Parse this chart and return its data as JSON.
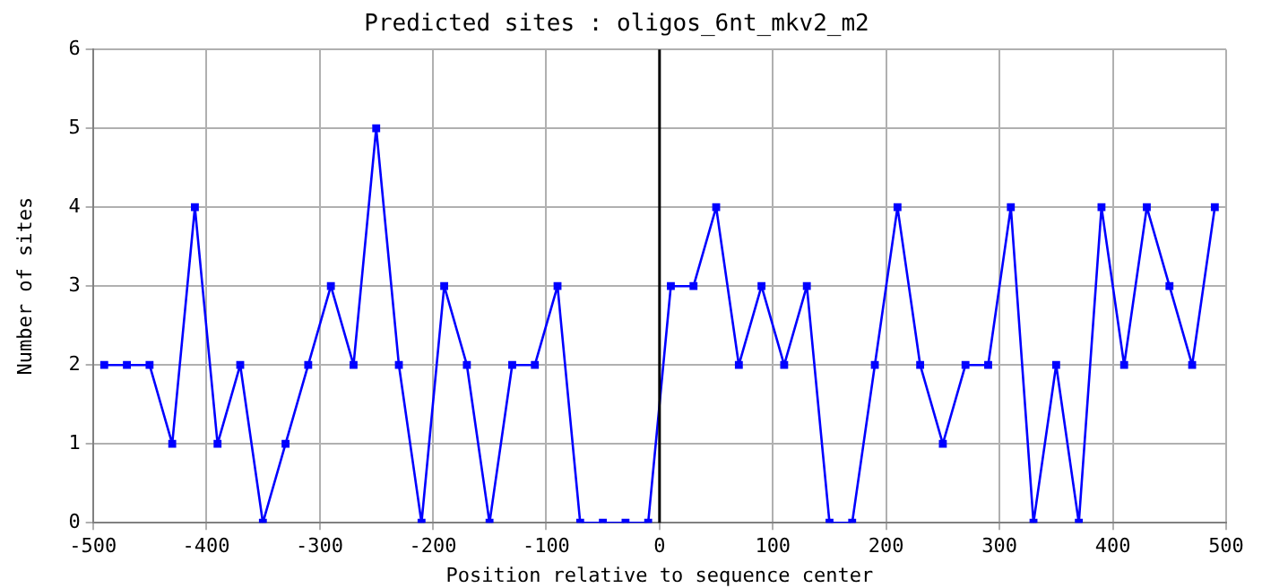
{
  "chart_data": {
    "type": "line",
    "title": "Predicted sites : oligos_6nt_mkv2_m2",
    "xlabel": "Position relative to sequence center",
    "ylabel": "Number of sites",
    "x": [
      -490,
      -470,
      -450,
      -430,
      -410,
      -390,
      -370,
      -350,
      -330,
      -310,
      -290,
      -270,
      -250,
      -230,
      -210,
      -190,
      -170,
      -150,
      -130,
      -110,
      -90,
      -70,
      -50,
      -30,
      -10,
      10,
      30,
      50,
      70,
      90,
      110,
      130,
      150,
      170,
      190,
      210,
      230,
      250,
      270,
      290,
      310,
      330,
      350,
      370,
      390,
      410,
      430,
      450,
      470,
      490
    ],
    "series": [
      {
        "color": "#0000ff",
        "values": [
          2,
          2,
          2,
          1,
          4,
          1,
          2,
          0,
          1,
          2,
          3,
          2,
          5,
          2,
          0,
          3,
          2,
          0,
          2,
          2,
          3,
          0,
          0,
          0,
          0,
          3,
          3,
          4,
          2,
          3,
          2,
          3,
          0,
          0,
          2,
          4,
          2,
          1,
          2,
          2,
          4,
          0,
          2,
          0,
          4,
          2,
          4,
          3,
          2,
          4
        ]
      }
    ],
    "xlim": [
      -500,
      500
    ],
    "xticks": [
      -500,
      -400,
      -300,
      -200,
      -100,
      0,
      100,
      200,
      300,
      400,
      500
    ],
    "ylim": [
      0,
      6
    ],
    "yticks": [
      0,
      1,
      2,
      3,
      4,
      5,
      6
    ],
    "ref_lines": [
      {
        "axis": "x",
        "value": 0,
        "color": "#000000"
      }
    ],
    "grid": true,
    "marker": "square",
    "line_style": "solid",
    "legend": false
  }
}
